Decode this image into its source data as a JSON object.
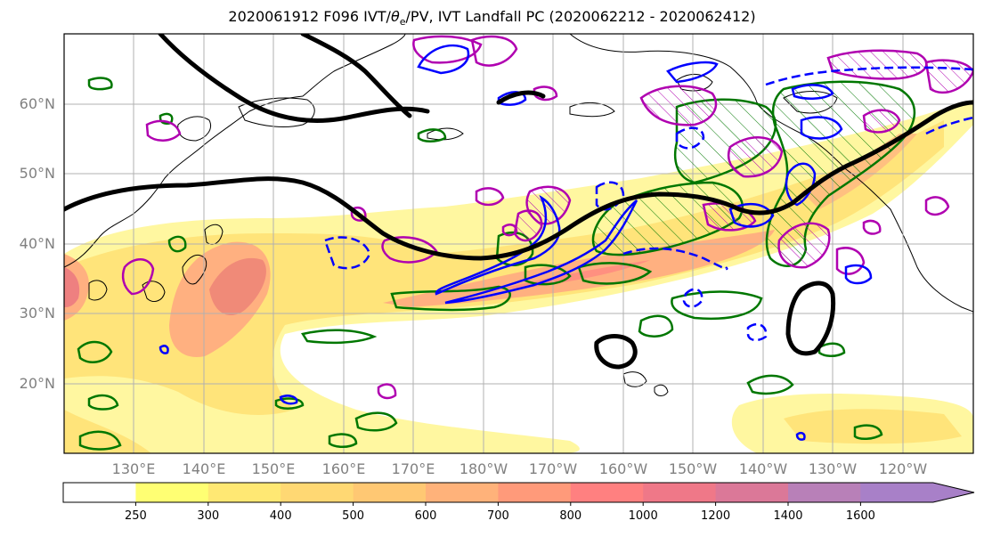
{
  "title": {
    "prefix": "2020061912 F096 IVT/",
    "theta_symbol": "θ",
    "theta_sub": "e",
    "suffix": "/PV, IVT Landfall PC (2020062212 - 2020062412)"
  },
  "map": {
    "lat_labels": [
      "60°N",
      "50°N",
      "40°N",
      "30°N",
      "20°N"
    ],
    "lat_values": [
      60,
      50,
      40,
      30,
      20
    ],
    "lon_labels": [
      "130°E",
      "140°E",
      "150°E",
      "160°E",
      "170°E",
      "180°W",
      "170°W",
      "160°W",
      "150°W",
      "140°W",
      "130°W",
      "120°W"
    ],
    "lon_values": [
      130,
      140,
      150,
      160,
      170,
      180,
      190,
      200,
      210,
      220,
      230,
      240
    ],
    "extent": {
      "lon_min": 120,
      "lon_max": 250,
      "lat_min": 10,
      "lat_max": 70
    },
    "colors": {
      "ivt_low": "#ffff66",
      "ivt_mid": "#ff9966",
      "ivt_high": "#e06060",
      "theta_e": "#0000ff",
      "pv": "#b000b0",
      "landfall_pc": "#007700",
      "jet": "#000000",
      "coast": "#000000",
      "grid": "#b0b0b0"
    }
  },
  "colorbar": {
    "levels": [
      "250",
      "300",
      "400",
      "500",
      "600",
      "700",
      "800",
      "1000",
      "1200",
      "1400",
      "1600"
    ],
    "colors": [
      "#ffffff",
      "#ffff73",
      "#ffe873",
      "#ffd873",
      "#ffc873",
      "#ffb27a",
      "#ff9a7a",
      "#ff8080",
      "#ef7888",
      "#db7898",
      "#b880b8",
      "#a880c8"
    ]
  }
}
